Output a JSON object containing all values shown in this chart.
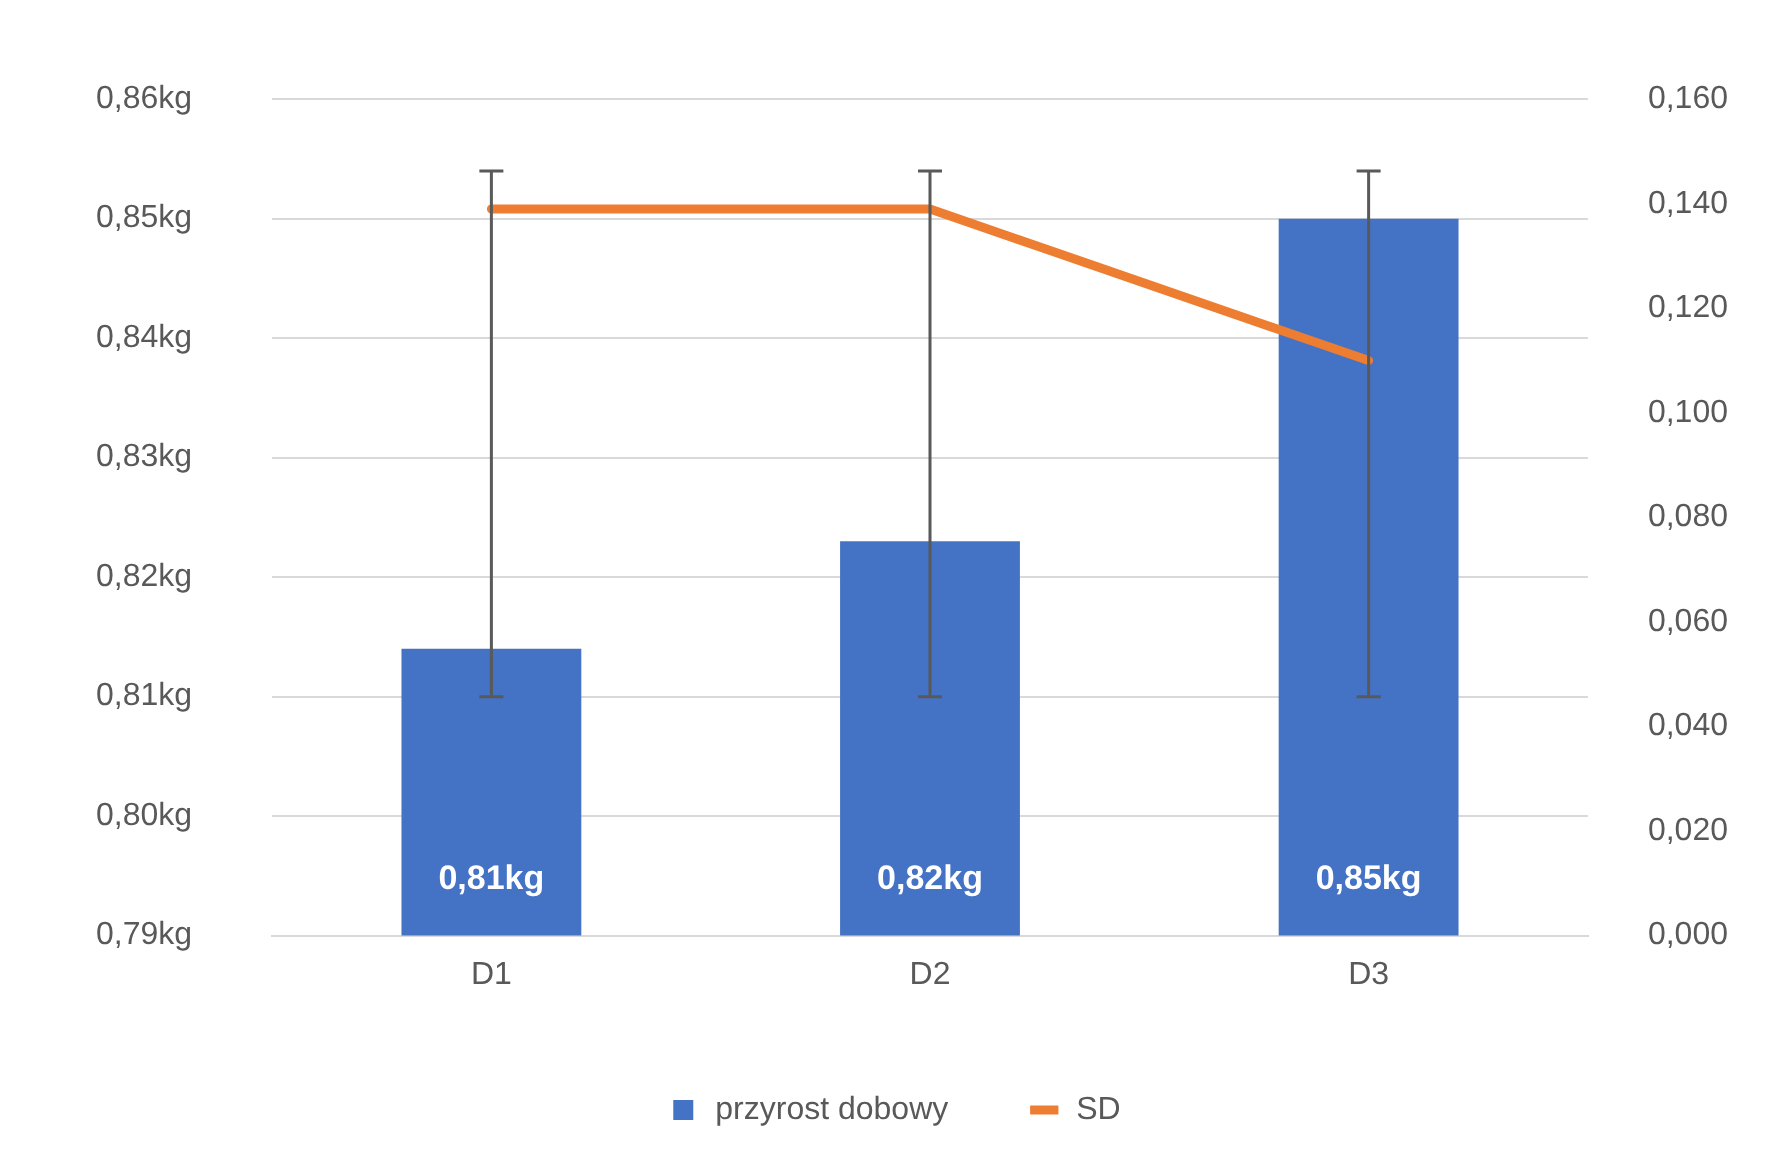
{
  "chart_data": {
    "type": "bar",
    "categories": [
      "D1",
      "D2",
      "D3"
    ],
    "series": [
      {
        "name": "przyrost dobowy",
        "color": "#4472c4",
        "values": [
          0.814,
          0.823,
          0.85
        ],
        "errors": [
          [
            0.81,
            0.854
          ],
          [
            0.81,
            0.854
          ],
          [
            0.81,
            0.854
          ]
        ],
        "value_labels": [
          "0,81kg",
          "0,82kg",
          "0,85kg"
        ]
      },
      {
        "name": "SD",
        "type": "line",
        "axis": "y2",
        "color": "#ed7d31",
        "values": [
          0.139,
          0.139,
          0.11
        ],
        "marker": "none"
      }
    ],
    "ylim": [
      0.79,
      0.86
    ],
    "yticks": [
      {
        "value": 0.79,
        "label": "0,79kg"
      },
      {
        "value": 0.8,
        "label": "0,80kg"
      },
      {
        "value": 0.81,
        "label": "0,81kg"
      },
      {
        "value": 0.82,
        "label": "0,82kg"
      },
      {
        "value": 0.83,
        "label": "0,83kg"
      },
      {
        "value": 0.84,
        "label": "0,84kg"
      },
      {
        "value": 0.85,
        "label": "0,85kg"
      },
      {
        "value": 0.86,
        "label": "0,86kg"
      }
    ],
    "y2lim": [
      0,
      0.16
    ],
    "y2ticks": [
      {
        "value": 0,
        "label": "0,000"
      },
      {
        "value": 0.02,
        "label": "0,020"
      },
      {
        "value": 0.04,
        "label": "0,040"
      },
      {
        "value": 0.06,
        "label": "0,060"
      },
      {
        "value": 0.08,
        "label": "0,080"
      },
      {
        "value": 0.1,
        "label": "0,100"
      },
      {
        "value": 0.12,
        "label": "0,120"
      },
      {
        "value": 0.14,
        "label": "0,140"
      },
      {
        "value": 0.16,
        "label": "0,160"
      }
    ],
    "grid": "y",
    "legend": "bottom"
  }
}
